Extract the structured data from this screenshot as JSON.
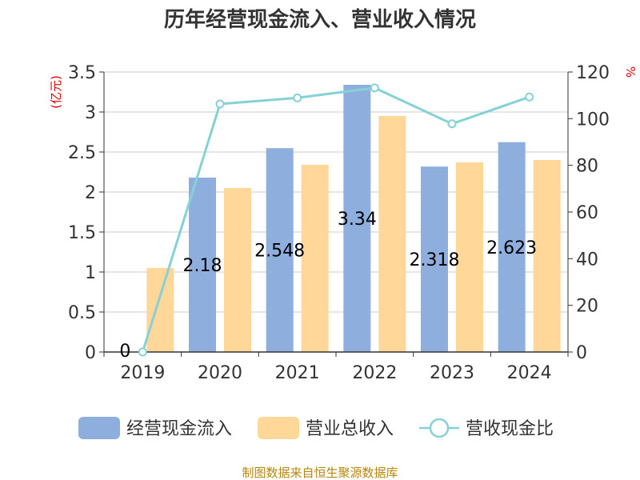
{
  "chart_data": {
    "type": "bar",
    "title": "历年经营现金流入、营业收入情况",
    "categories": [
      "2019",
      "2020",
      "2021",
      "2022",
      "2023",
      "2024"
    ],
    "y_left": {
      "unit_label": "(亿元)",
      "ylim": [
        0,
        3.5
      ],
      "ticks": [
        "0",
        "0.5",
        "1",
        "1.5",
        "2",
        "2.5",
        "3",
        "3.5"
      ]
    },
    "y_right": {
      "unit_label": "%",
      "ylim": [
        0,
        120
      ],
      "ticks": [
        "0",
        "20",
        "40",
        "60",
        "80",
        "100",
        "120"
      ]
    },
    "series": [
      {
        "name": "经营现金流入",
        "kind": "bar",
        "axis": "left",
        "color": "#8eaede",
        "values": [
          0,
          2.18,
          2.548,
          3.34,
          2.318,
          2.623
        ],
        "labels": [
          "0",
          "2.18",
          "2.548",
          "3.34",
          "2.318",
          "2.623"
        ]
      },
      {
        "name": "营业总收入",
        "kind": "bar",
        "axis": "left",
        "color": "#ffd799",
        "values": [
          1.05,
          2.05,
          2.34,
          2.95,
          2.37,
          2.4
        ]
      },
      {
        "name": "营收现金比",
        "kind": "line",
        "axis": "right",
        "color": "#86d1d6",
        "values": [
          0,
          106.3,
          108.9,
          113.2,
          97.8,
          109.3
        ]
      }
    ],
    "grid": true,
    "legend_position": "bottom"
  },
  "source": "制图数据来自恒生聚源数据库"
}
